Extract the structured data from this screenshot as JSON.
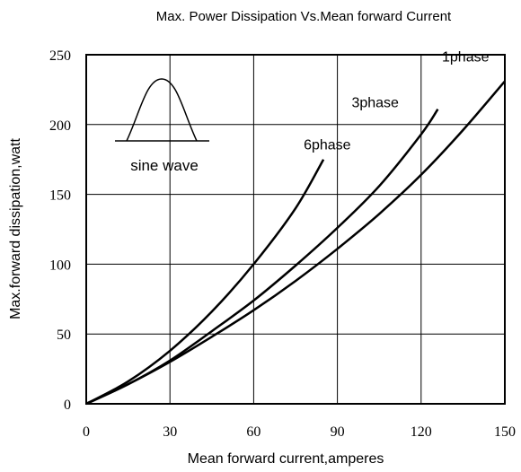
{
  "chart_data": {
    "type": "line",
    "title": "Max. Power Dissipation Vs.Mean forward Current",
    "xlabel": "Mean forward current,amperes",
    "ylabel": "Max.forward dissipation,watt",
    "xlim": [
      0,
      150
    ],
    "ylim": [
      0,
      250
    ],
    "x_ticks": [
      "0",
      "30",
      "60",
      "90",
      "120",
      "150"
    ],
    "y_ticks": [
      "0",
      "50",
      "100",
      "150",
      "200",
      "250"
    ],
    "grid": true,
    "series": [
      {
        "name": "1phase",
        "x": [
          0,
          15,
          30,
          45,
          60,
          75,
          90,
          105,
          120,
          135,
          150
        ],
        "y": [
          0,
          14,
          30,
          48,
          67,
          88,
          111,
          136,
          164,
          196,
          231
        ]
      },
      {
        "name": "3phase",
        "x": [
          0,
          15,
          30,
          45,
          60,
          75,
          90,
          105,
          120,
          126
        ],
        "y": [
          0,
          14,
          31,
          52,
          74,
          99,
          126,
          156,
          193,
          211
        ]
      },
      {
        "name": "6phase",
        "x": [
          0,
          15,
          30,
          45,
          60,
          75,
          85
        ],
        "y": [
          0,
          16,
          38,
          66,
          100,
          140,
          175
        ]
      }
    ],
    "inset": {
      "label": "sine wave"
    }
  }
}
